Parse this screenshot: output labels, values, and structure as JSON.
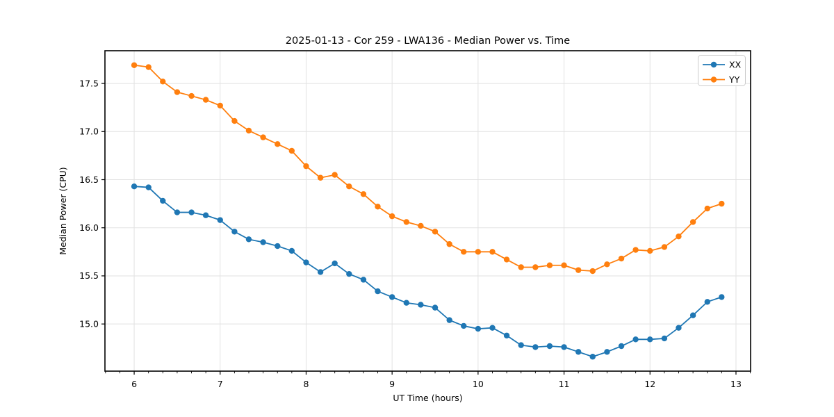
{
  "chart_data": {
    "type": "line",
    "title": "2025-01-13 - Cor 259 - LWA136 - Median Power vs. Time",
    "xlabel": "UT Time (hours)",
    "ylabel": "Median Power (CPU)",
    "xlim": [
      5.66,
      13.17
    ],
    "ylim": [
      14.51,
      17.84
    ],
    "xticks": [
      6,
      7,
      8,
      9,
      10,
      11,
      12,
      13
    ],
    "yticks": [
      15.0,
      15.5,
      16.0,
      16.5,
      17.0,
      17.5
    ],
    "x_minor_tick_interval": 0.1667,
    "grid": true,
    "legend_position": "upper right",
    "x": [
      6.0,
      6.167,
      6.333,
      6.5,
      6.667,
      6.833,
      7.0,
      7.167,
      7.333,
      7.5,
      7.667,
      7.833,
      8.0,
      8.167,
      8.333,
      8.5,
      8.667,
      8.833,
      9.0,
      9.167,
      9.333,
      9.5,
      9.667,
      9.833,
      10.0,
      10.167,
      10.333,
      10.5,
      10.667,
      10.833,
      11.0,
      11.167,
      11.333,
      11.5,
      11.667,
      11.833,
      12.0,
      12.167,
      12.333,
      12.5,
      12.667,
      12.833
    ],
    "series": [
      {
        "name": "XX",
        "color": "#1f77b4",
        "values": [
          16.43,
          16.42,
          16.28,
          16.16,
          16.16,
          16.13,
          16.08,
          15.96,
          15.88,
          15.85,
          15.81,
          15.76,
          15.64,
          15.54,
          15.63,
          15.52,
          15.46,
          15.34,
          15.28,
          15.22,
          15.2,
          15.17,
          15.04,
          14.98,
          14.95,
          14.96,
          14.88,
          14.78,
          14.76,
          14.77,
          14.76,
          14.71,
          14.66,
          14.71,
          14.77,
          14.84,
          14.84,
          14.85,
          14.96,
          15.09,
          15.23,
          15.28
        ]
      },
      {
        "name": "YY",
        "color": "#ff7f0e",
        "values": [
          17.69,
          17.67,
          17.52,
          17.41,
          17.37,
          17.33,
          17.27,
          17.11,
          17.01,
          16.94,
          16.87,
          16.8,
          16.64,
          16.52,
          16.55,
          16.43,
          16.35,
          16.22,
          16.12,
          16.06,
          16.02,
          15.96,
          15.83,
          15.75,
          15.75,
          15.75,
          15.67,
          15.59,
          15.59,
          15.61,
          15.61,
          15.56,
          15.55,
          15.62,
          15.68,
          15.77,
          15.76,
          15.8,
          15.91,
          16.06,
          16.2,
          16.25
        ]
      }
    ],
    "style": {
      "grid_color": "#e2e2e2",
      "spine_color": "#000000",
      "legend_border_color": "#cccccc",
      "background": "#ffffff"
    }
  }
}
